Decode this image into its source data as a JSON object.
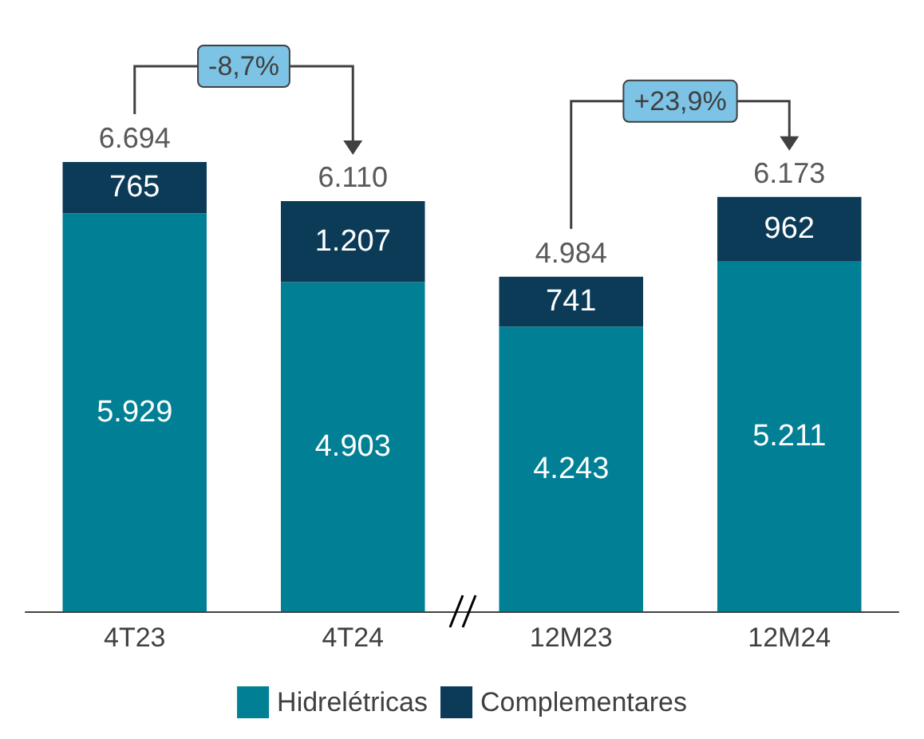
{
  "chart_data": {
    "type": "bar",
    "stacked": true,
    "categories": [
      "4T23",
      "4T24",
      "12M23",
      "12M24"
    ],
    "series": [
      {
        "name": "Hidrelétricas",
        "color": "#017f94",
        "values": [
          5929,
          4903,
          4243,
          5211
        ],
        "value_labels": [
          "5.929",
          "4.903",
          "4.243",
          "5.211"
        ]
      },
      {
        "name": "Complementares",
        "color": "#0b3b57",
        "values": [
          765,
          1207,
          741,
          962
        ],
        "value_labels": [
          "765",
          "1.207",
          "741",
          "962"
        ]
      }
    ],
    "totals": [
      "6.694",
      "6.110",
      "4.984",
      "6.173"
    ],
    "annotations": [
      "-8,7%",
      "+23,9%"
    ],
    "legend": "bottom"
  }
}
